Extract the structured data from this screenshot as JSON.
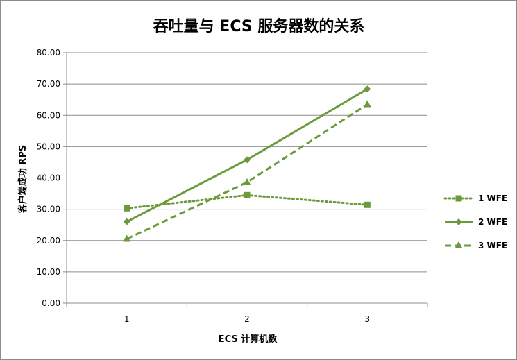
{
  "chart_data": {
    "type": "line",
    "title": "吞吐量与 ECS 服务器数的关系",
    "xlabel": "ECS 计算机数",
    "ylabel": "客户端成功 RPS",
    "categories": [
      "1",
      "2",
      "3"
    ],
    "ylim": [
      0,
      80
    ],
    "ytick_labels": [
      "0.00",
      "10.00",
      "20.00",
      "30.00",
      "40.00",
      "50.00",
      "60.00",
      "70.00",
      "80.00"
    ],
    "grid": true,
    "legend_position": "right",
    "series": [
      {
        "name": "1 WFE",
        "values": [
          30.3,
          34.5,
          31.4
        ],
        "style": "dotted",
        "marker": "square",
        "color": "#6b9a3a"
      },
      {
        "name": "2 WFE",
        "values": [
          26.0,
          45.8,
          68.4
        ],
        "style": "solid",
        "marker": "diamond",
        "color": "#6b9a3a"
      },
      {
        "name": "3 WFE",
        "values": [
          20.5,
          38.6,
          63.5
        ],
        "style": "dashed",
        "marker": "triangle",
        "color": "#6b9a3a"
      }
    ]
  }
}
